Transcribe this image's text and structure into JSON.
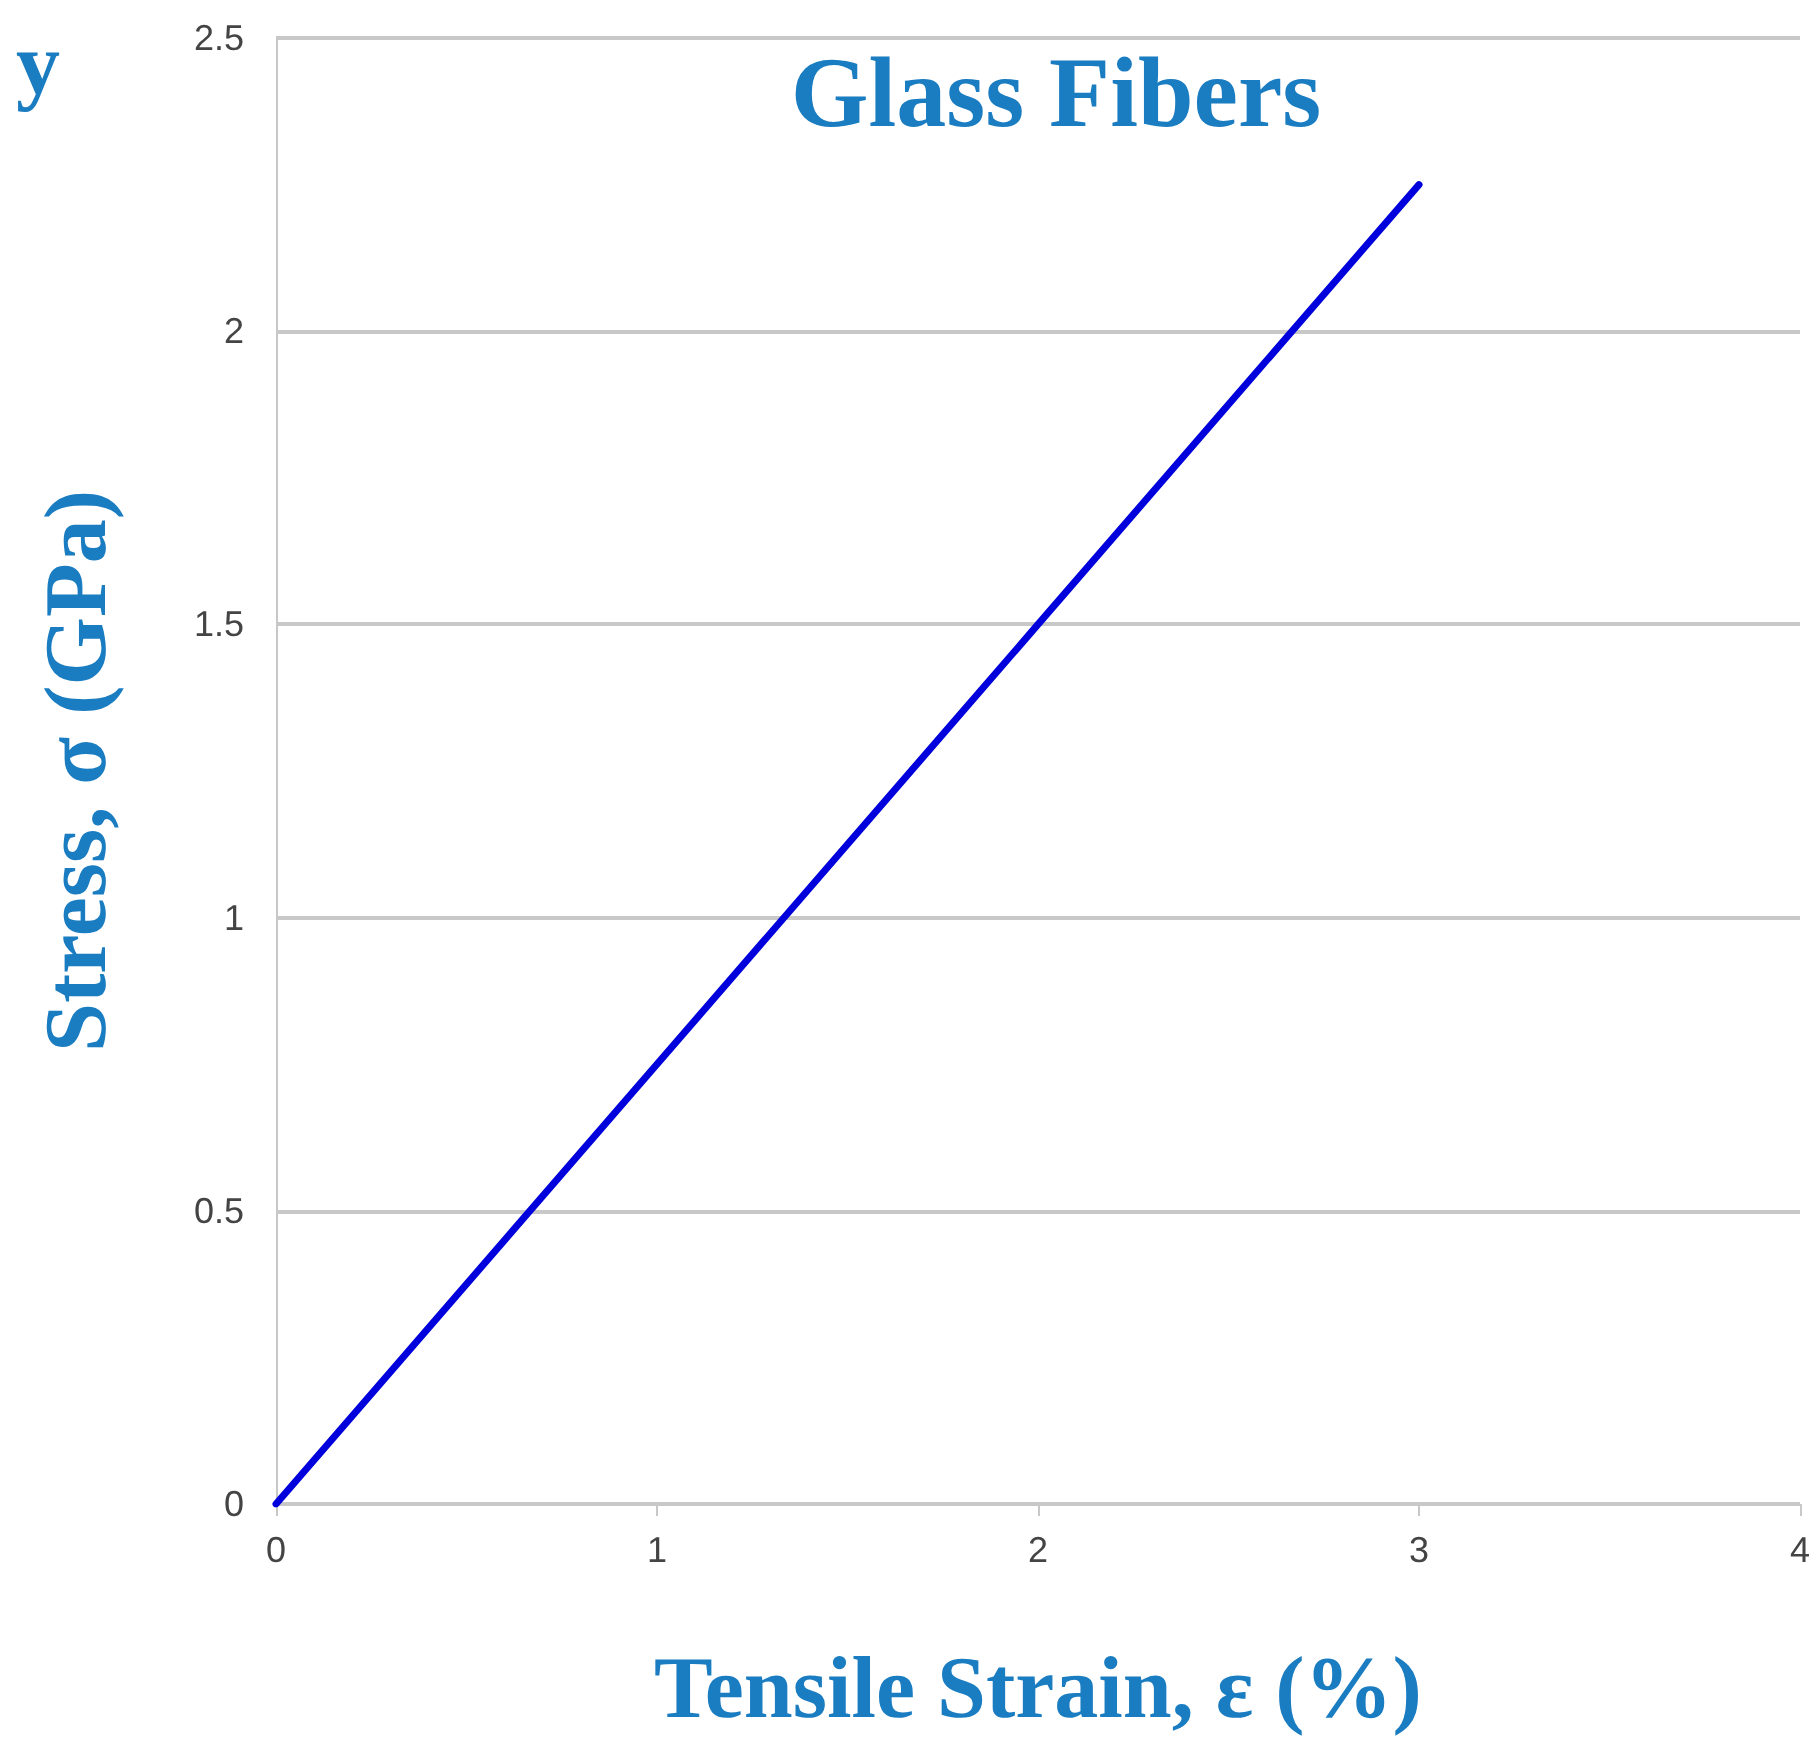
{
  "chart_data": {
    "type": "line",
    "title": "Glass Fibers",
    "xlabel": "Tensile Strain, ε (%)",
    "ylabel": "Stress, σ (GPa)",
    "annotations": [
      "y"
    ],
    "x": [
      0,
      2,
      3
    ],
    "series": [
      {
        "color": "#0000dd",
        "values": [
          0,
          1.5,
          2.25
        ]
      }
    ],
    "xlim": [
      0,
      4
    ],
    "xticks": [
      0,
      1,
      2,
      3,
      4
    ],
    "ylim": [
      0,
      2.5
    ],
    "yticks": [
      0,
      0.5,
      1,
      1.5,
      2,
      2.5
    ],
    "grid": "y",
    "marker": "none",
    "line_style": "solid"
  }
}
